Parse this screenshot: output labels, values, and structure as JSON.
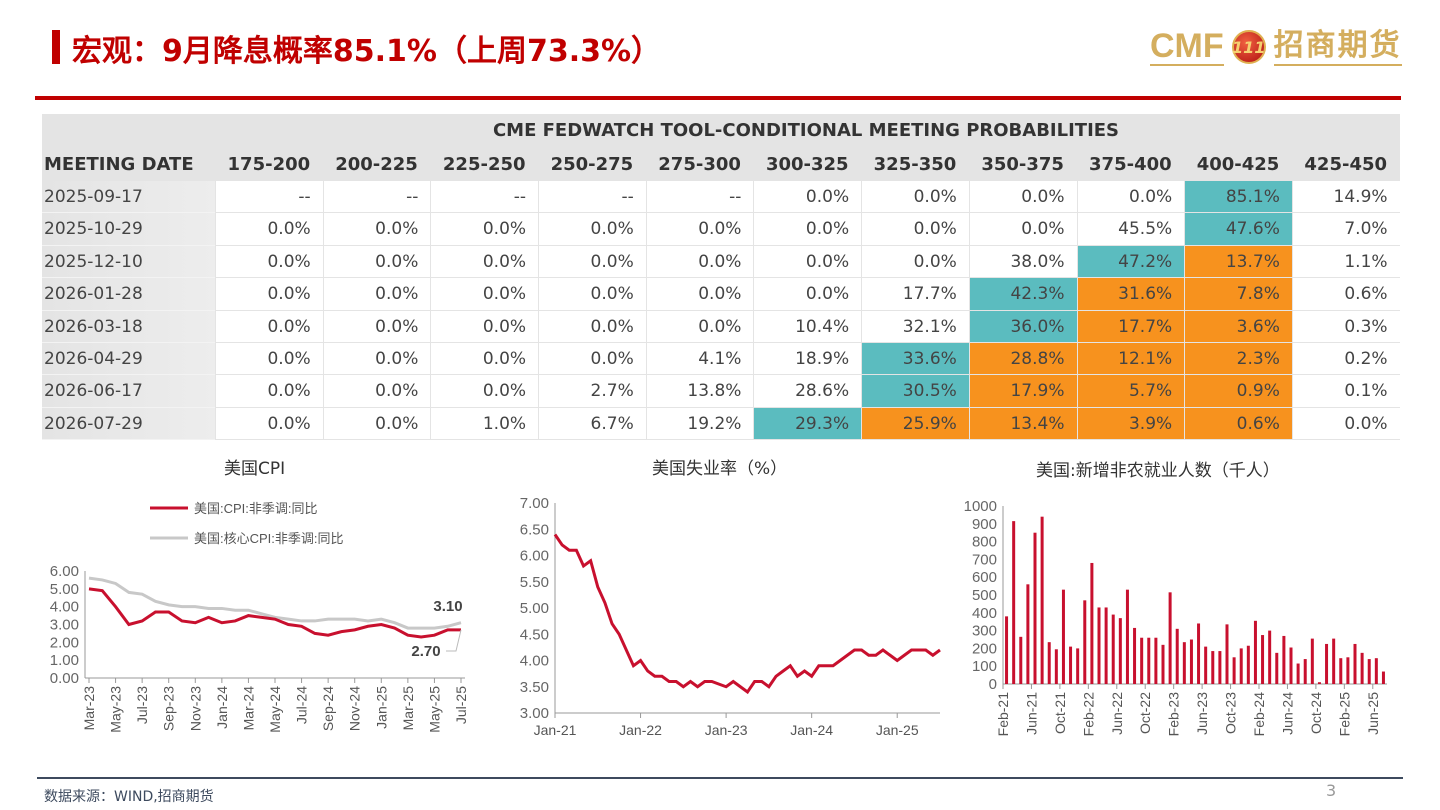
{
  "header": {
    "title": "宏观：9月降息概率85.1%（上周73.3%）",
    "logo_text": "CMF",
    "logo_mark": "111",
    "logo_cn": "招商期货"
  },
  "table": {
    "caption": "CME FEDWATCH TOOL-CONDITIONAL MEETING PROBABILITIES",
    "columns": [
      "MEETING DATE",
      "175-200",
      "200-225",
      "225-250",
      "250-275",
      "275-300",
      "300-325",
      "325-350",
      "350-375",
      "375-400",
      "400-425",
      "425-450"
    ],
    "rows": [
      {
        "date": "2025-09-17",
        "values": [
          "--",
          "--",
          "--",
          "--",
          "--",
          "0.0%",
          "0.0%",
          "0.0%",
          "0.0%",
          "85.1%",
          "14.9%"
        ],
        "hl": [
          "",
          "",
          "",
          "",
          "",
          "",
          "",
          "",
          "",
          "t",
          ""
        ]
      },
      {
        "date": "2025-10-29",
        "values": [
          "0.0%",
          "0.0%",
          "0.0%",
          "0.0%",
          "0.0%",
          "0.0%",
          "0.0%",
          "0.0%",
          "45.5%",
          "47.6%",
          "7.0%"
        ],
        "hl": [
          "",
          "",
          "",
          "",
          "",
          "",
          "",
          "",
          "",
          "t",
          ""
        ]
      },
      {
        "date": "2025-12-10",
        "values": [
          "0.0%",
          "0.0%",
          "0.0%",
          "0.0%",
          "0.0%",
          "0.0%",
          "0.0%",
          "38.0%",
          "47.2%",
          "13.7%",
          "1.1%"
        ],
        "hl": [
          "",
          "",
          "",
          "",
          "",
          "",
          "",
          "",
          "t",
          "o",
          ""
        ]
      },
      {
        "date": "2026-01-28",
        "values": [
          "0.0%",
          "0.0%",
          "0.0%",
          "0.0%",
          "0.0%",
          "0.0%",
          "17.7%",
          "42.3%",
          "31.6%",
          "7.8%",
          "0.6%"
        ],
        "hl": [
          "",
          "",
          "",
          "",
          "",
          "",
          "",
          "t",
          "o",
          "o",
          ""
        ]
      },
      {
        "date": "2026-03-18",
        "values": [
          "0.0%",
          "0.0%",
          "0.0%",
          "0.0%",
          "0.0%",
          "10.4%",
          "32.1%",
          "36.0%",
          "17.7%",
          "3.6%",
          "0.3%"
        ],
        "hl": [
          "",
          "",
          "",
          "",
          "",
          "",
          "",
          "t",
          "o",
          "o",
          ""
        ]
      },
      {
        "date": "2026-04-29",
        "values": [
          "0.0%",
          "0.0%",
          "0.0%",
          "0.0%",
          "4.1%",
          "18.9%",
          "33.6%",
          "28.8%",
          "12.1%",
          "2.3%",
          "0.2%"
        ],
        "hl": [
          "",
          "",
          "",
          "",
          "",
          "",
          "t",
          "o",
          "o",
          "o",
          ""
        ]
      },
      {
        "date": "2026-06-17",
        "values": [
          "0.0%",
          "0.0%",
          "0.0%",
          "2.7%",
          "13.8%",
          "28.6%",
          "30.5%",
          "17.9%",
          "5.7%",
          "0.9%",
          "0.1%"
        ],
        "hl": [
          "",
          "",
          "",
          "",
          "",
          "",
          "t",
          "o",
          "o",
          "o",
          ""
        ]
      },
      {
        "date": "2026-07-29",
        "values": [
          "0.0%",
          "0.0%",
          "1.0%",
          "6.7%",
          "19.2%",
          "29.3%",
          "25.9%",
          "13.4%",
          "3.9%",
          "0.6%",
          "0.0%"
        ],
        "hl": [
          "",
          "",
          "",
          "",
          "",
          "t",
          "o",
          "o",
          "o",
          "o",
          ""
        ]
      }
    ]
  },
  "chart_data": [
    {
      "type": "line",
      "title": "美国CPI",
      "ylim": [
        0,
        6
      ],
      "yticks": [
        "0.00",
        "1.00",
        "2.00",
        "3.00",
        "4.00",
        "5.00",
        "6.00"
      ],
      "x": [
        "Mar-23",
        "Apr-23",
        "May-23",
        "Jun-23",
        "Jul-23",
        "Aug-23",
        "Sep-23",
        "Oct-23",
        "Nov-23",
        "Dec-23",
        "Jan-24",
        "Feb-24",
        "Mar-24",
        "Apr-24",
        "May-24",
        "Jun-24",
        "Jul-24",
        "Aug-24",
        "Sep-24",
        "Oct-24",
        "Nov-24",
        "Dec-24",
        "Jan-25",
        "Feb-25",
        "Mar-25",
        "Apr-25",
        "May-25",
        "Jun-25",
        "Jul-25"
      ],
      "xticks": [
        "Mar-23",
        "May-23",
        "Jul-23",
        "Sep-23",
        "Nov-23",
        "Jan-24",
        "Mar-24",
        "May-24",
        "Jul-24",
        "Sep-24",
        "Nov-24",
        "Jan-25",
        "Mar-25",
        "May-25",
        "Jul-25"
      ],
      "series": [
        {
          "name": "美国:CPI:非季调:同比",
          "color": "#c8102e",
          "values": [
            5.0,
            4.9,
            4.0,
            3.0,
            3.2,
            3.7,
            3.7,
            3.2,
            3.1,
            3.4,
            3.1,
            3.2,
            3.5,
            3.4,
            3.3,
            3.0,
            2.9,
            2.5,
            2.4,
            2.6,
            2.7,
            2.9,
            3.0,
            2.8,
            2.4,
            2.3,
            2.4,
            2.7,
            2.7
          ]
        },
        {
          "name": "美国:核心CPI:非季调:同比",
          "color": "#c8c8c8",
          "values": [
            5.6,
            5.5,
            5.3,
            4.8,
            4.7,
            4.3,
            4.1,
            4.0,
            4.0,
            3.9,
            3.9,
            3.8,
            3.8,
            3.6,
            3.4,
            3.3,
            3.2,
            3.2,
            3.3,
            3.3,
            3.3,
            3.2,
            3.3,
            3.1,
            2.8,
            2.8,
            2.8,
            2.9,
            3.1
          ]
        }
      ],
      "annotations": [
        "3.10",
        "2.70"
      ],
      "legend": "top-left"
    },
    {
      "type": "line",
      "title": "美国失业率（%）",
      "ylim": [
        3,
        7
      ],
      "yticks": [
        "3.00",
        "3.50",
        "4.00",
        "4.50",
        "5.00",
        "5.50",
        "6.00",
        "6.50",
        "7.00"
      ],
      "x_start": "Jan-21",
      "xticks": [
        "Jan-21",
        "Jan-22",
        "Jan-23",
        "Jan-24",
        "Jan-25"
      ],
      "series": [
        {
          "name": "美国失业率",
          "color": "#c8102e",
          "values": [
            6.4,
            6.2,
            6.1,
            6.1,
            5.8,
            5.9,
            5.4,
            5.1,
            4.7,
            4.5,
            4.2,
            3.9,
            4.0,
            3.8,
            3.7,
            3.7,
            3.6,
            3.6,
            3.5,
            3.6,
            3.5,
            3.6,
            3.6,
            3.55,
            3.5,
            3.6,
            3.5,
            3.4,
            3.6,
            3.6,
            3.5,
            3.7,
            3.8,
            3.9,
            3.7,
            3.8,
            3.7,
            3.9,
            3.9,
            3.9,
            4.0,
            4.1,
            4.2,
            4.2,
            4.1,
            4.1,
            4.2,
            4.1,
            4.0,
            4.1,
            4.2,
            4.2,
            4.2,
            4.1,
            4.2
          ]
        }
      ]
    },
    {
      "type": "bar",
      "title": "美国:新增非农就业人数（千人）",
      "ylim": [
        0,
        1000
      ],
      "yticks": [
        "0",
        "100",
        "200",
        "300",
        "400",
        "500",
        "600",
        "700",
        "800",
        "900",
        "1000"
      ],
      "x_start": "Feb-21",
      "xticks": [
        "Feb-21",
        "Jun-21",
        "Oct-21",
        "Feb-22",
        "Jun-22",
        "Oct-22",
        "Feb-23",
        "Jun-23",
        "Oct-23",
        "Feb-24",
        "Jun-24",
        "Oct-24",
        "Feb-25",
        "Jun-25"
      ],
      "series": [
        {
          "name": "新增非农就业人数",
          "color": "#c8102e",
          "values": [
            380,
            915,
            265,
            560,
            850,
            940,
            235,
            195,
            530,
            210,
            200,
            470,
            680,
            430,
            430,
            390,
            370,
            530,
            315,
            260,
            260,
            260,
            220,
            515,
            310,
            235,
            250,
            340,
            210,
            185,
            185,
            335,
            150,
            200,
            215,
            355,
            275,
            300,
            175,
            270,
            205,
            115,
            140,
            255,
            10,
            225,
            255,
            145,
            150,
            225,
            175,
            140,
            145,
            70
          ]
        }
      ]
    }
  ],
  "footer": {
    "source": "数据来源：WIND,招商期货",
    "page": "3"
  }
}
